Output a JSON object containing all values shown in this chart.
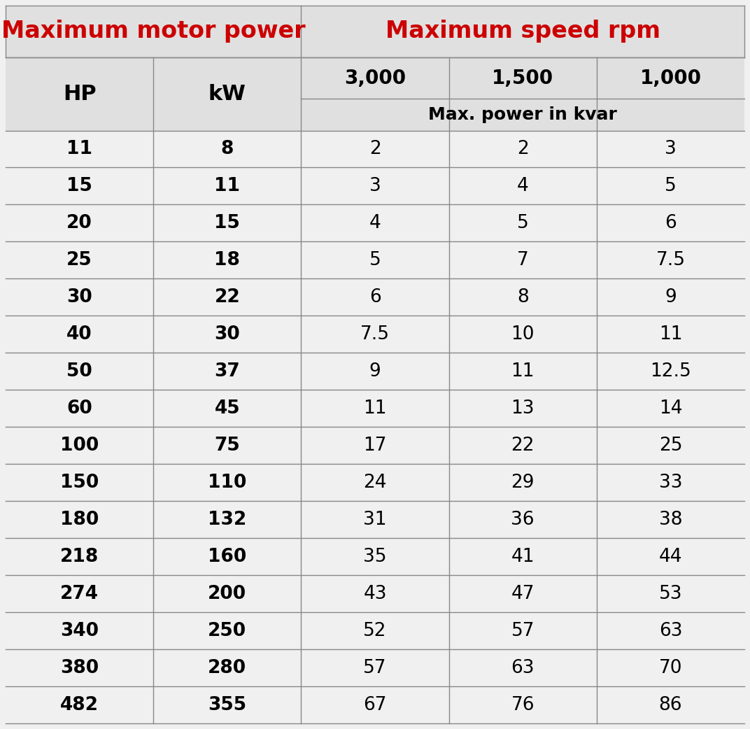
{
  "title_left": "Maximum motor power",
  "title_right": "Maximum speed rpm",
  "title_color": "#CC0000",
  "header_speeds": [
    "3,000",
    "1,500",
    "1,000"
  ],
  "subheader": "Max. power in kvar",
  "col_headers": [
    "HP",
    "kW"
  ],
  "rows": [
    [
      "11",
      "8",
      "2",
      "2",
      "3"
    ],
    [
      "15",
      "11",
      "3",
      "4",
      "5"
    ],
    [
      "20",
      "15",
      "4",
      "5",
      "6"
    ],
    [
      "25",
      "18",
      "5",
      "7",
      "7.5"
    ],
    [
      "30",
      "22",
      "6",
      "8",
      "9"
    ],
    [
      "40",
      "30",
      "7.5",
      "10",
      "11"
    ],
    [
      "50",
      "37",
      "9",
      "11",
      "12.5"
    ],
    [
      "60",
      "45",
      "11",
      "13",
      "14"
    ],
    [
      "100",
      "75",
      "17",
      "22",
      "25"
    ],
    [
      "150",
      "110",
      "24",
      "29",
      "33"
    ],
    [
      "180",
      "132",
      "31",
      "36",
      "38"
    ],
    [
      "218",
      "160",
      "35",
      "41",
      "44"
    ],
    [
      "274",
      "200",
      "43",
      "47",
      "53"
    ],
    [
      "340",
      "250",
      "52",
      "57",
      "63"
    ],
    [
      "380",
      "280",
      "57",
      "63",
      "70"
    ],
    [
      "482",
      "355",
      "67",
      "76",
      "86"
    ]
  ],
  "bg_color_header": "#E0E0E0",
  "bg_color_row": "#F0F0F0",
  "line_color": "#888888",
  "title_color_bg": "#E0E0E0",
  "title_fontsize": 24,
  "speed_fontsize": 20,
  "subheader_fontsize": 18,
  "col_header_fontsize": 22,
  "cell_fontsize": 19,
  "fig_width": 10.72,
  "fig_height": 10.42,
  "dpi": 100
}
